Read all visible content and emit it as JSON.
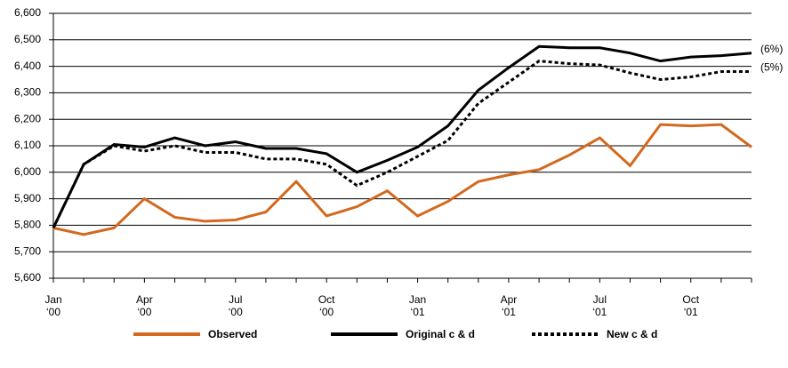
{
  "chart_data": {
    "type": "line",
    "categories": [
      [
        "Jan",
        "‘00"
      ],
      null,
      null,
      [
        "Apr",
        "‘00"
      ],
      null,
      null,
      [
        "Jul",
        "‘00"
      ],
      null,
      null,
      [
        "Oct",
        "‘00"
      ],
      null,
      null,
      [
        "Jan",
        "‘01"
      ],
      null,
      null,
      [
        "Apr",
        "‘01"
      ],
      null,
      null,
      [
        "Jul",
        "‘01"
      ],
      null,
      null,
      [
        "Oct",
        "‘01"
      ],
      null,
      null
    ],
    "series": [
      {
        "name": "Observed",
        "color": "#d2691e",
        "dash": false,
        "values": [
          5790,
          5765,
          5790,
          5900,
          5830,
          5815,
          5820,
          5850,
          5965,
          5835,
          5870,
          5930,
          5835,
          5890,
          5965,
          5990,
          6010,
          6065,
          6130,
          6025,
          6180,
          6175,
          6180,
          6095
        ]
      },
      {
        "name": "Original c & d",
        "color": "#000000",
        "dash": false,
        "end_label": "(6%)",
        "values": [
          5790,
          6030,
          6105,
          6095,
          6130,
          6100,
          6115,
          6090,
          6090,
          6070,
          6000,
          6045,
          6095,
          6175,
          6310,
          6395,
          6475,
          6470,
          6470,
          6450,
          6420,
          6435,
          6440,
          6450
        ]
      },
      {
        "name": "New c & d",
        "color": "#000000",
        "dash": true,
        "end_label": "(5%)",
        "values": [
          5790,
          6030,
          6100,
          6080,
          6100,
          6075,
          6075,
          6050,
          6050,
          6030,
          5950,
          6000,
          6060,
          6120,
          6260,
          6340,
          6420,
          6410,
          6405,
          6375,
          6350,
          6360,
          6380,
          6380
        ]
      }
    ],
    "ylim": [
      5600,
      6600
    ],
    "yticks": [
      {
        "value": 5600,
        "label": "5,600"
      },
      {
        "value": 5700,
        "label": "5,700"
      },
      {
        "value": 5800,
        "label": "5,800"
      },
      {
        "value": 5900,
        "label": "5,900"
      },
      {
        "value": 6000,
        "label": "6,000"
      },
      {
        "value": 6100,
        "label": "6,100"
      },
      {
        "value": 6200,
        "label": "6,200"
      },
      {
        "value": 6300,
        "label": "6,300"
      },
      {
        "value": 6400,
        "label": "6,400"
      },
      {
        "value": 6500,
        "label": "6,500"
      },
      {
        "value": 6600,
        "label": "6,600"
      }
    ],
    "grid": true
  }
}
